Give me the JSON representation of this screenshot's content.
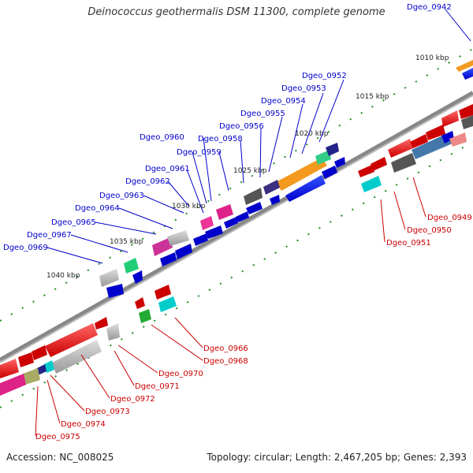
{
  "title": "Deinococcus geothermalis DSM 11300, complete genome",
  "footer": {
    "accession": "Accession: NC_008025",
    "summary": "Topology: circular; Length: 2,467,205 bp; Genes: 2,393"
  },
  "ticks": [
    "1010 kbp",
    "1015 kbp",
    "1020 kbp",
    "1025 kbp",
    "1030 kbp",
    "1035 kbp",
    "1040 kbp"
  ],
  "genes_top": [
    "Dgeo_0942",
    "Dgeo_0952",
    "Dgeo_0953",
    "Dgeo_0954",
    "Dgeo_0955",
    "Dgeo_0956",
    "Dgeo_0958",
    "Dgeo_0959",
    "Dgeo_0960",
    "Dgeo_0961",
    "Dgeo_0962",
    "Dgeo_0963",
    "Dgeo_0964",
    "Dgeo_0965",
    "Dgeo_0967",
    "Dgeo_0969"
  ],
  "genes_right": [
    "Dgeo_0949",
    "Dgeo_0950",
    "Dgeo_0951"
  ],
  "genes_bottom": [
    "Dgeo_0966",
    "Dgeo_0968",
    "Dgeo_0970",
    "Dgeo_0971",
    "Dgeo_0972",
    "Dgeo_0973",
    "Dgeo_0974",
    "Dgeo_0975"
  ],
  "colors": {
    "forward_label": "#0000cc",
    "reverse_label": "#cc0000",
    "backbone": "#888888",
    "tick": "#228b22"
  }
}
